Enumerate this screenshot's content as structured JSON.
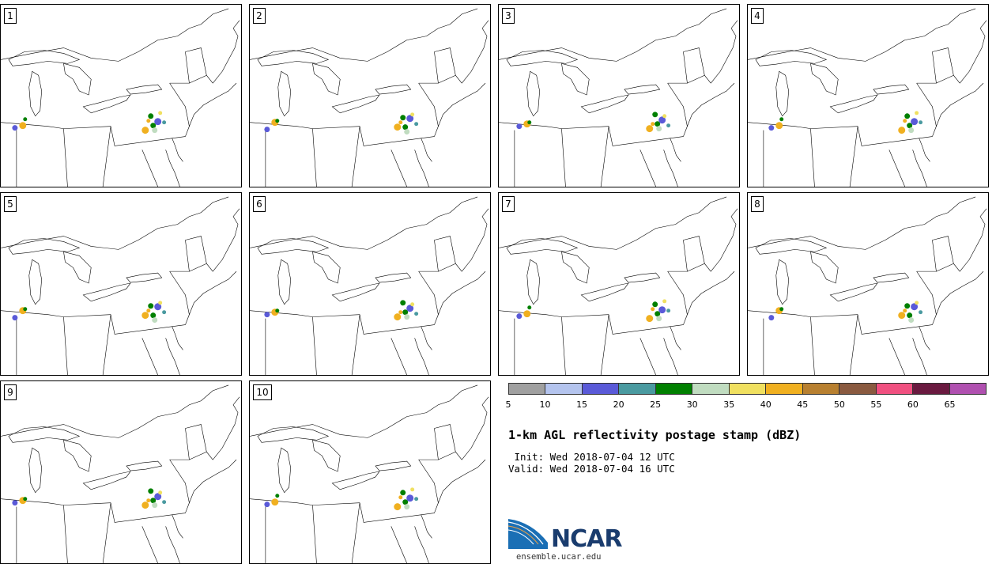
{
  "panels": [
    {
      "label": "1"
    },
    {
      "label": "2"
    },
    {
      "label": "3"
    },
    {
      "label": "4"
    },
    {
      "label": "5"
    },
    {
      "label": "6"
    },
    {
      "label": "7"
    },
    {
      "label": "8"
    },
    {
      "label": "9"
    },
    {
      "label": "10"
    }
  ],
  "legend": {
    "colors": [
      "#a0a0a0",
      "#b4c4ee",
      "#5a5ad8",
      "#4a9aa0",
      "#008000",
      "#c0dcc0",
      "#f0e060",
      "#f0b020",
      "#b88030",
      "#8a5a40",
      "#f05080",
      "#6a1a40",
      "#b050b0"
    ],
    "ticks": [
      "5",
      "10",
      "15",
      "20",
      "25",
      "30",
      "35",
      "40",
      "45",
      "50",
      "55",
      "60",
      "65"
    ]
  },
  "title": "1-km AGL reflectivity postage stamp (dBZ)",
  "init_line": " Init: Wed 2018-07-04 12 UTC",
  "valid_line": "Valid: Wed 2018-07-04 16 UTC",
  "logo": {
    "text": "NCAR",
    "url": "ensemble.ucar.edu"
  }
}
